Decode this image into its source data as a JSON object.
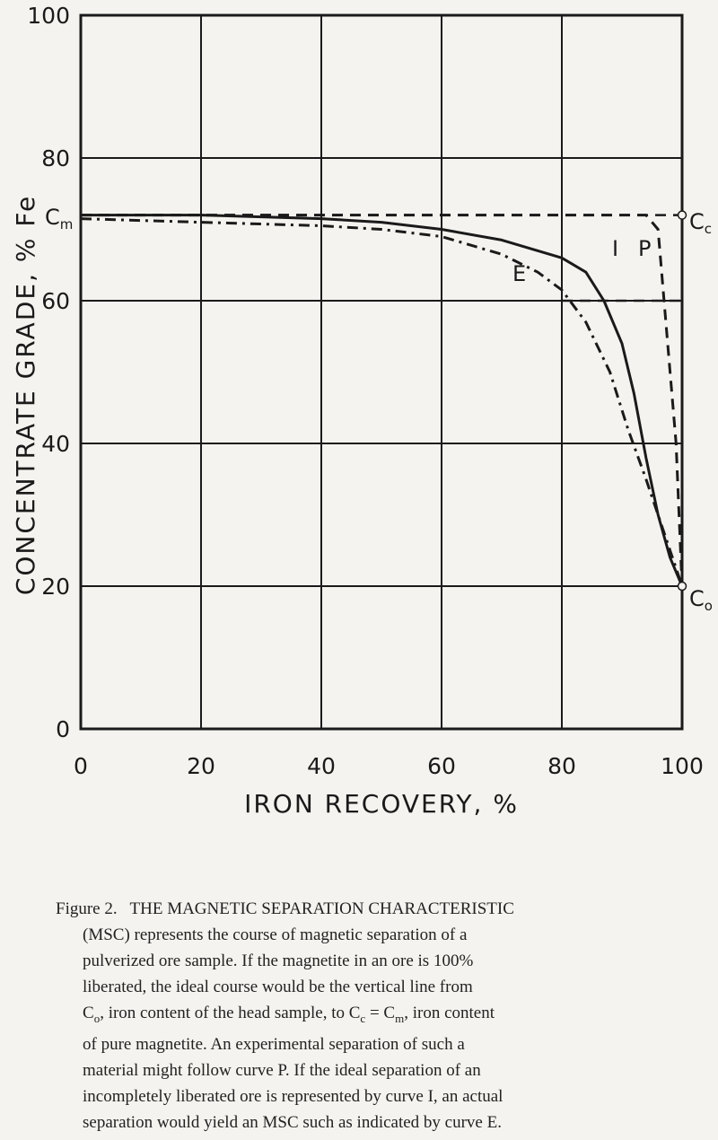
{
  "chart_data": {
    "type": "line",
    "xlabel": "IRON RECOVERY, %",
    "ylabel": "CONCENTRATE GRADE, % Fe",
    "xlim": [
      0,
      100
    ],
    "ylim": [
      0,
      100
    ],
    "x_ticks": [
      "0",
      "20",
      "40",
      "60",
      "80",
      "100"
    ],
    "y_ticks": [
      "0",
      "20",
      "40",
      "60",
      "80",
      "100"
    ],
    "grid": true,
    "point_labels": {
      "cm": {
        "main": "C",
        "sub": "m"
      },
      "cc": {
        "main": "C",
        "sub": "c"
      },
      "co": {
        "main": "C",
        "sub": "o"
      }
    },
    "series": [
      {
        "name": "I",
        "style": "solid",
        "points": [
          [
            0,
            72
          ],
          [
            20,
            72
          ],
          [
            40,
            71.5
          ],
          [
            50,
            71
          ],
          [
            60,
            70
          ],
          [
            70,
            68.5
          ],
          [
            80,
            66
          ],
          [
            84,
            64
          ],
          [
            87,
            60
          ],
          [
            90,
            54
          ],
          [
            92,
            47
          ],
          [
            94,
            38
          ],
          [
            96,
            30
          ],
          [
            98,
            24
          ],
          [
            100,
            20
          ]
        ]
      },
      {
        "name": "E",
        "style": "dash-dot",
        "points": [
          [
            0,
            71.5
          ],
          [
            20,
            71
          ],
          [
            40,
            70.5
          ],
          [
            50,
            70
          ],
          [
            60,
            69
          ],
          [
            70,
            66.5
          ],
          [
            76,
            64
          ],
          [
            80,
            61.5
          ],
          [
            84,
            57
          ],
          [
            88,
            50
          ],
          [
            91,
            42
          ],
          [
            94,
            35
          ],
          [
            96,
            30
          ],
          [
            98,
            25
          ],
          [
            100,
            20
          ]
        ]
      },
      {
        "name": "P",
        "style": "dashed",
        "points": [
          [
            0,
            72
          ],
          [
            50,
            72
          ],
          [
            94,
            72
          ],
          [
            96,
            70
          ],
          [
            97,
            60
          ],
          [
            98,
            50
          ],
          [
            99,
            40
          ],
          [
            99.5,
            30
          ],
          [
            100,
            20
          ]
        ]
      }
    ],
    "reference_lines": [
      {
        "style": "dashed",
        "points": [
          [
            0,
            72
          ],
          [
            100,
            72
          ]
        ]
      },
      {
        "style": "dashed",
        "points": [
          [
            80,
            60
          ],
          [
            100,
            60
          ]
        ]
      },
      {
        "style": "dashed",
        "points": [
          [
            100,
            72
          ],
          [
            100,
            20
          ]
        ]
      }
    ]
  },
  "caption": {
    "heading": "Figure 2.   THE MAGNETIC SEPARATION CHARACTERISTIC",
    "line1": "(MSC) represents the course of magnetic separation of a",
    "line2": "pulverized ore sample.  If the magnetite in an ore is 100%",
    "line3": "liberated, the ideal course would be the vertical line from",
    "l4_c1": "C",
    "l4_s1": "o",
    "l4_t1": ",  iron content of the head sample,  to ",
    "l4_c2": "C",
    "l4_s2": "c",
    "l4_eq": " = ",
    "l4_c3": "C",
    "l4_s3": "m",
    "l4_t2": ",  iron content",
    "line5": "of pure magnetite.  An experimental separation of such a",
    "line6": "material might follow curve P.  If the ideal separation of an",
    "line7": "incompletely liberated ore is represented by curve I,  an actual",
    "line8": "separation would yield an MSC such as indicated by curve E."
  }
}
